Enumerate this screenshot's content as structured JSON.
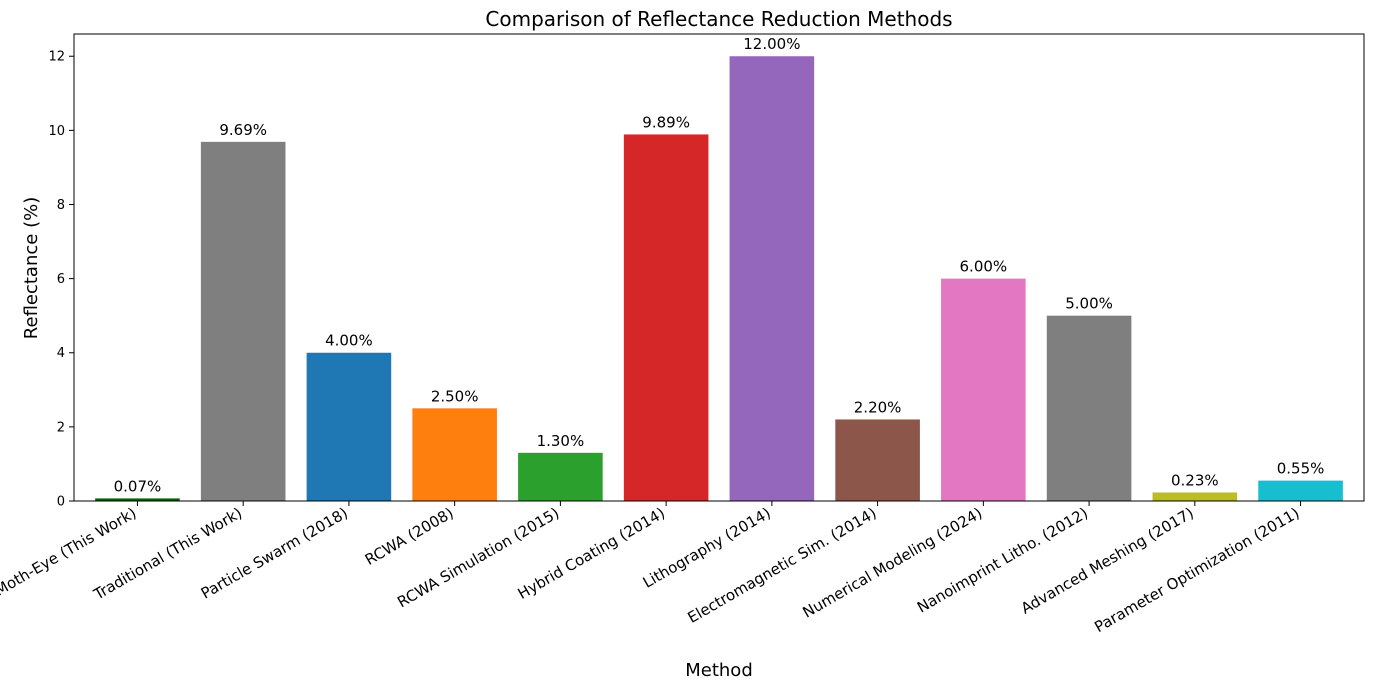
{
  "chart_data": {
    "type": "bar",
    "title": "Comparison of Reflectance Reduction Methods",
    "xlabel": "Method",
    "ylabel": "Reflectance (%)",
    "ylim": [
      0,
      12.6
    ],
    "yticks": [
      0,
      2,
      4,
      6,
      8,
      10,
      12
    ],
    "grid": false,
    "legend": "none",
    "categories": [
      "Moth-Eye (This Work)",
      "Traditional (This Work)",
      "Particle Swarm (2018)",
      "RCWA (2008)",
      "RCWA Simulation (2015)",
      "Hybrid Coating (2014)",
      "Lithography (2014)",
      "Electromagnetic Sim. (2014)",
      "Numerical Modeling (2024)",
      "Nanoimprint Litho. (2012)",
      "Advanced Meshing (2017)",
      "Parameter Optimization (2011)"
    ],
    "values": [
      0.07,
      9.69,
      4.0,
      2.5,
      1.3,
      9.89,
      12.0,
      2.2,
      6.0,
      5.0,
      0.23,
      0.55
    ],
    "data_labels": [
      "0.07%",
      "9.69%",
      "4.00%",
      "2.50%",
      "1.30%",
      "9.89%",
      "12.00%",
      "2.20%",
      "6.00%",
      "5.00%",
      "0.23%",
      "0.55%"
    ],
    "colors": [
      "#006400",
      "#7f7f7f",
      "#1f77b4",
      "#ff7f0e",
      "#2ca02c",
      "#d62728",
      "#9467bd",
      "#8c564b",
      "#e377c2",
      "#7f7f7f",
      "#bcbd22",
      "#17becf"
    ]
  }
}
